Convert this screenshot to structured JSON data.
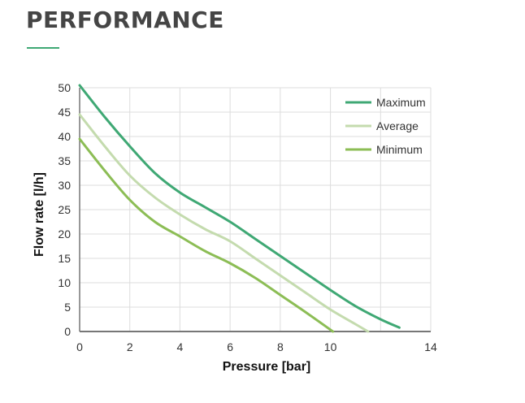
{
  "header": {
    "title": "PERFORMANCE"
  },
  "chart_data": {
    "type": "line",
    "title": "",
    "xlabel": "Pressure  [bar]",
    "ylabel": "Flow rate [l/h]",
    "xlim": [
      0,
      14
    ],
    "ylim": [
      0,
      50
    ],
    "xticks": [
      0,
      2,
      4,
      6,
      8,
      10,
      14
    ],
    "yticks": [
      0,
      5,
      10,
      15,
      20,
      25,
      30,
      35,
      40,
      45,
      50
    ],
    "grid": true,
    "legend_position": "top-right",
    "series": [
      {
        "name": "Maximum",
        "color": "#3fa874",
        "x": [
          0,
          1,
          2,
          3,
          4,
          5,
          6,
          7,
          8,
          9,
          10,
          11,
          12,
          12.75
        ],
        "y": [
          50.5,
          44,
          38,
          32.5,
          28.5,
          25.5,
          22.5,
          19,
          15.5,
          12,
          8.5,
          5.2,
          2.5,
          0.8
        ]
      },
      {
        "name": "Average",
        "color": "#c4dbae",
        "x": [
          0,
          1,
          2,
          3,
          4,
          5,
          6,
          7,
          8,
          9,
          10,
          11,
          11.5
        ],
        "y": [
          44.5,
          38,
          32,
          27.5,
          24,
          21,
          18.5,
          15,
          11.5,
          8,
          4.5,
          1.5,
          0
        ]
      },
      {
        "name": "Minimum",
        "color": "#8cbd55",
        "x": [
          0,
          1,
          2,
          3,
          4,
          5,
          6,
          7,
          8,
          9,
          10.1
        ],
        "y": [
          39.5,
          33,
          27,
          22.5,
          19.5,
          16.5,
          14,
          11,
          7.5,
          4,
          0
        ]
      }
    ]
  }
}
